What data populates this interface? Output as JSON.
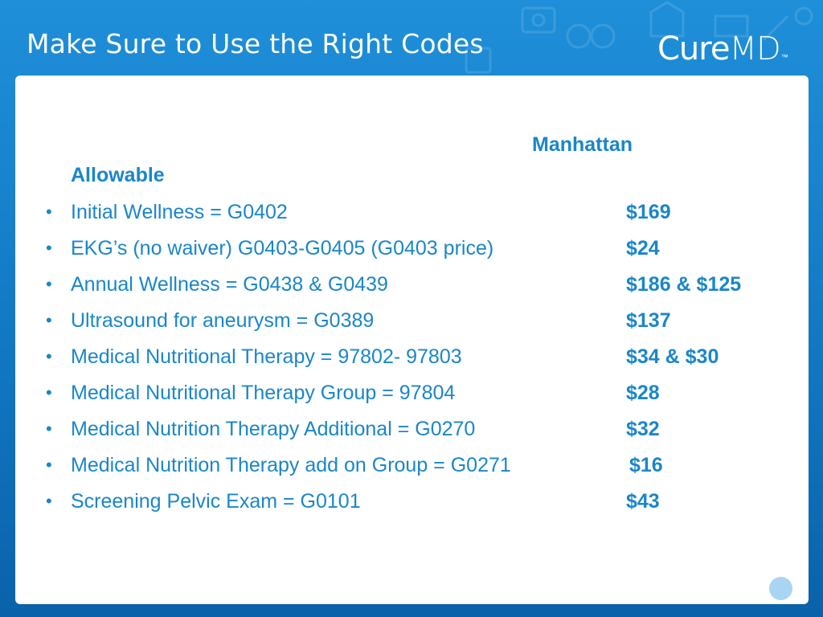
{
  "slide": {
    "title": "Make Sure to Use the Right Codes",
    "brand": {
      "cure": "Cure",
      "md": "MD",
      "tm": "™"
    }
  },
  "table": {
    "header_location": "Manhattan",
    "header_allowable": "Allowable",
    "items": [
      {
        "description": "Initial Wellness = G0402",
        "price": "$169"
      },
      {
        "description": "EKG’s  (no waiver) G0403-G0405 (G0403 price)",
        "price": "$24"
      },
      {
        "description": "Annual Wellness = G0438 & G0439",
        "price": "$186  & $125"
      },
      {
        "description": "Ultrasound for aneurysm = G0389",
        "price": "$137"
      },
      {
        "description": "Medical Nutritional Therapy = 97802- 97803",
        "price": "$34 & $30"
      },
      {
        "description": "Medical Nutritional Therapy Group = 97804",
        "price": "$28"
      },
      {
        "description": "Medical Nutrition Therapy Additional = G0270",
        "price": "$32"
      },
      {
        "description": "Medical Nutrition Therapy add on Group = G0271",
        "price": "$16"
      },
      {
        "description": "Screening Pelvic Exam = G0101",
        "price": "$43"
      }
    ]
  },
  "colors": {
    "background_top": "#1f8fd9",
    "background_bottom": "#0a62aa",
    "text_accent": "#1a86c9",
    "panel": "#ffffff",
    "nav_dot": "#a9d4f4"
  }
}
